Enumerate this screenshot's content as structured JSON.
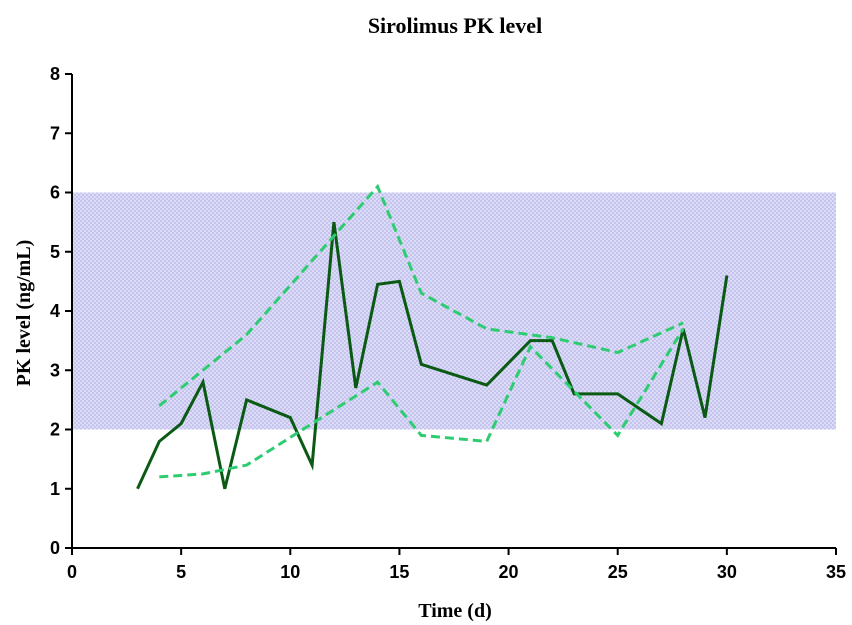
{
  "chart_data": {
    "type": "line",
    "title": "Sirolimus PK level",
    "xlabel": "Time (d)",
    "ylabel": "PK level (ng/mL)",
    "xlim": [
      0,
      35
    ],
    "ylim": [
      0,
      8
    ],
    "xticks": [
      "0",
      "5",
      "10",
      "15",
      "20",
      "25",
      "30",
      "35"
    ],
    "yticks": [
      "0",
      "1",
      "2",
      "3",
      "4",
      "5",
      "6",
      "7",
      "8"
    ],
    "grid": false,
    "legend": "none",
    "target_range": {
      "y": [
        2,
        6
      ],
      "color": "#c8c8f0"
    },
    "series": [
      {
        "style": "solid",
        "color": "#0a5a14",
        "x": [
          3,
          4,
          5,
          6,
          7,
          8,
          10,
          11,
          12,
          13,
          14,
          15,
          16,
          19,
          21,
          22,
          23,
          25,
          27,
          28,
          29,
          30
        ],
        "y": [
          1.0,
          1.8,
          2.1,
          2.8,
          1.0,
          2.5,
          2.2,
          1.4,
          5.5,
          2.7,
          4.45,
          4.5,
          3.1,
          2.75,
          3.5,
          3.5,
          2.6,
          2.6,
          2.1,
          3.7,
          2.2,
          4.6
        ]
      },
      {
        "style": "dashed",
        "color": "#2ecc71",
        "x": [
          4,
          8,
          14,
          16,
          19,
          22,
          25,
          28
        ],
        "y": [
          2.4,
          3.6,
          6.1,
          4.3,
          3.7,
          3.55,
          3.3,
          3.8
        ]
      },
      {
        "style": "dashed",
        "color": "#2ecc71",
        "x": [
          4,
          6,
          8,
          14,
          16,
          19,
          21,
          25,
          28
        ],
        "y": [
          1.2,
          1.25,
          1.4,
          2.8,
          1.9,
          1.8,
          3.4,
          1.9,
          3.7
        ]
      }
    ]
  }
}
